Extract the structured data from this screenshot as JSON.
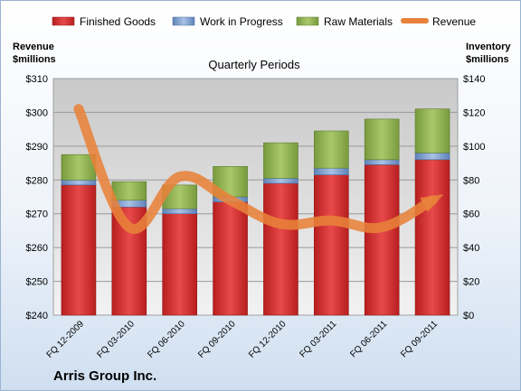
{
  "chart_data": {
    "type": "bar",
    "title": "Quarterly Periods",
    "company": "Arris Group Inc.",
    "left_axis": {
      "title_line1": "Revenue",
      "title_line2": "$millions",
      "range": [
        240,
        310
      ],
      "ticks": [
        "$240",
        "$250",
        "$260",
        "$270",
        "$280",
        "$290",
        "$300",
        "$310"
      ]
    },
    "right_axis": {
      "title_line1": "Inventory",
      "title_line2": "$millions",
      "range": [
        0,
        140
      ],
      "ticks": [
        "$0",
        "$20",
        "$40",
        "$60",
        "$80",
        "$100",
        "$120",
        "$140"
      ]
    },
    "categories": [
      "FQ 12-2009",
      "FQ 03-2010",
      "FQ 06-2010",
      "FQ 09-2010",
      "FQ 12-2010",
      "FQ 03-2011",
      "FQ 06-2011",
      "FQ 09-2011"
    ],
    "series": [
      {
        "name": "Finished Goods",
        "type": "stacked-bar",
        "axis": "right",
        "color": "#d42a2a",
        "values": [
          77,
          64,
          60,
          67,
          78,
          83,
          89,
          92
        ]
      },
      {
        "name": "Work in Progress",
        "type": "stacked-bar",
        "axis": "right",
        "color": "#7fa0cf",
        "values": [
          3,
          4,
          3,
          3,
          3,
          4,
          3,
          4
        ]
      },
      {
        "name": "Raw Materials",
        "type": "stacked-bar",
        "axis": "right",
        "color": "#93b356",
        "values": [
          15,
          11,
          14,
          18,
          21,
          22,
          24,
          26
        ]
      },
      {
        "name": "Revenue",
        "type": "line",
        "axis": "left",
        "color": "#e8823a",
        "values": [
          301,
          266,
          281,
          274,
          267,
          268,
          266,
          274
        ]
      }
    ],
    "grid": true,
    "legend_position": "top"
  }
}
